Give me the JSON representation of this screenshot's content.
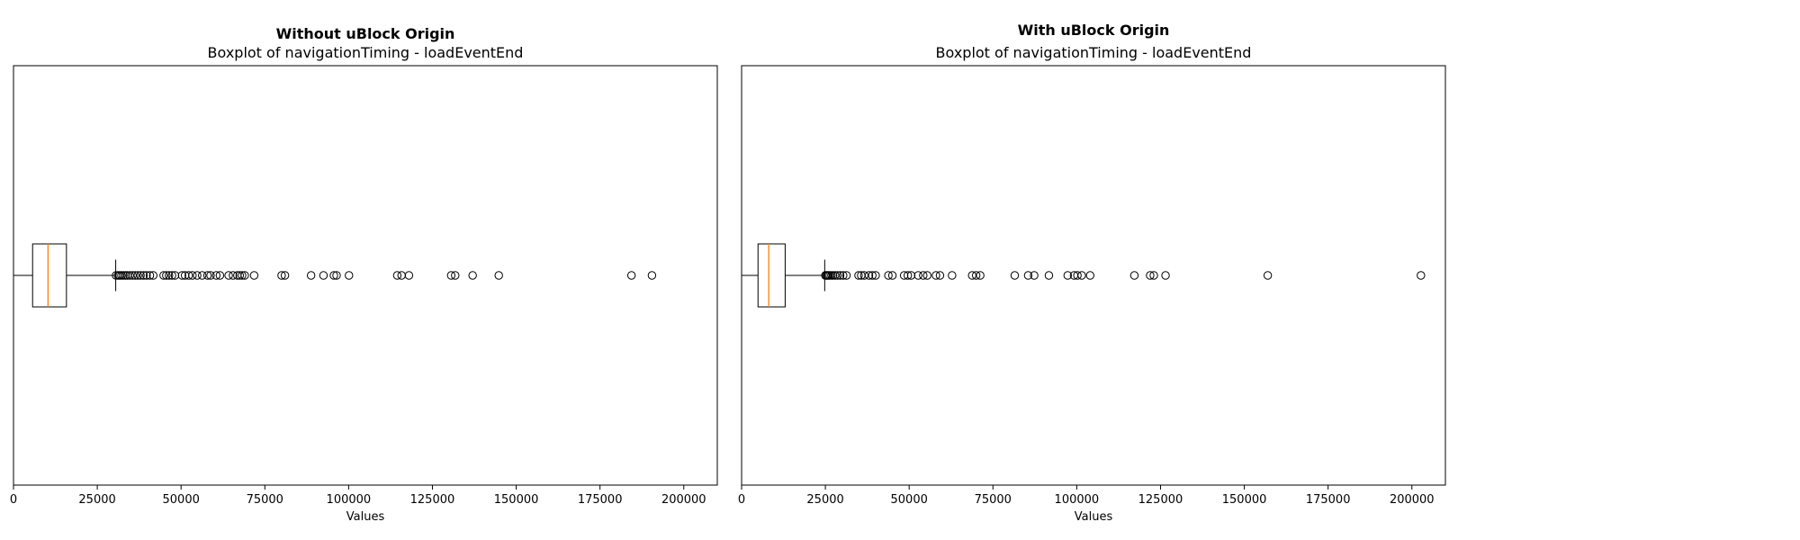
{
  "chart_data": [
    {
      "type": "boxplot",
      "orientation": "horizontal",
      "title": "Without uBlock Origin",
      "subtitle": "Boxplot of navigationTiming - loadEventEnd",
      "xlabel": "Values",
      "ylabel": "",
      "xlim": [
        0,
        210000
      ],
      "xticks": [
        0,
        25000,
        50000,
        75000,
        100000,
        125000,
        150000,
        175000,
        200000
      ],
      "xtick_labels": [
        "0",
        "25000",
        "50000",
        "75000",
        "100000",
        "125000",
        "150000",
        "175000",
        "200000"
      ],
      "grid": false,
      "box": {
        "whisker_low": 0,
        "q1": 5700,
        "median": 10300,
        "q3": 15800,
        "whisker_high": 30500
      },
      "outliers": [
        30600,
        31200,
        31700,
        32200,
        32800,
        33400,
        34000,
        34700,
        35500,
        36300,
        37100,
        37900,
        38800,
        39700,
        40700,
        41700,
        44800,
        45600,
        46400,
        47300,
        48200,
        50300,
        51200,
        52300,
        53400,
        54800,
        56300,
        57900,
        58800,
        60500,
        61600,
        64200,
        65500,
        66800,
        67500,
        68200,
        69000,
        71800,
        80000,
        81000,
        88800,
        92500,
        95600,
        96400,
        100100,
        114500,
        115800,
        118000,
        130600,
        131800,
        137000,
        144800,
        184400,
        190500
      ],
      "colors": {
        "box": "#000000",
        "median": "#ff7f0e",
        "outlier": "#000000"
      }
    },
    {
      "type": "boxplot",
      "orientation": "horizontal",
      "title": "With uBlock Origin",
      "subtitle": "Boxplot of navigationTiming - loadEventEnd",
      "xlabel": "Values",
      "ylabel": "",
      "xlim": [
        0,
        210000
      ],
      "xticks": [
        0,
        25000,
        50000,
        75000,
        100000,
        125000,
        150000,
        175000,
        200000
      ],
      "xtick_labels": [
        "0",
        "25000",
        "50000",
        "75000",
        "100000",
        "125000",
        "150000",
        "175000",
        "200000"
      ],
      "grid": false,
      "box": {
        "whisker_low": 0,
        "q1": 4900,
        "median": 8100,
        "q3": 13000,
        "whisker_high": 24800
      },
      "outliers": [
        25000,
        25300,
        25600,
        25900,
        26300,
        26800,
        27300,
        27900,
        28600,
        29400,
        30300,
        31300,
        34900,
        35700,
        36600,
        38000,
        39000,
        40000,
        43800,
        45000,
        48500,
        49600,
        50600,
        52700,
        54200,
        55400,
        58000,
        59200,
        62800,
        68800,
        70000,
        71200,
        81500,
        85500,
        87300,
        91700,
        97300,
        99200,
        100200,
        101500,
        104000,
        117200,
        121900,
        123000,
        126500,
        157000,
        202700
      ],
      "colors": {
        "box": "#000000",
        "median": "#ff7f0e",
        "outlier": "#000000"
      }
    }
  ]
}
